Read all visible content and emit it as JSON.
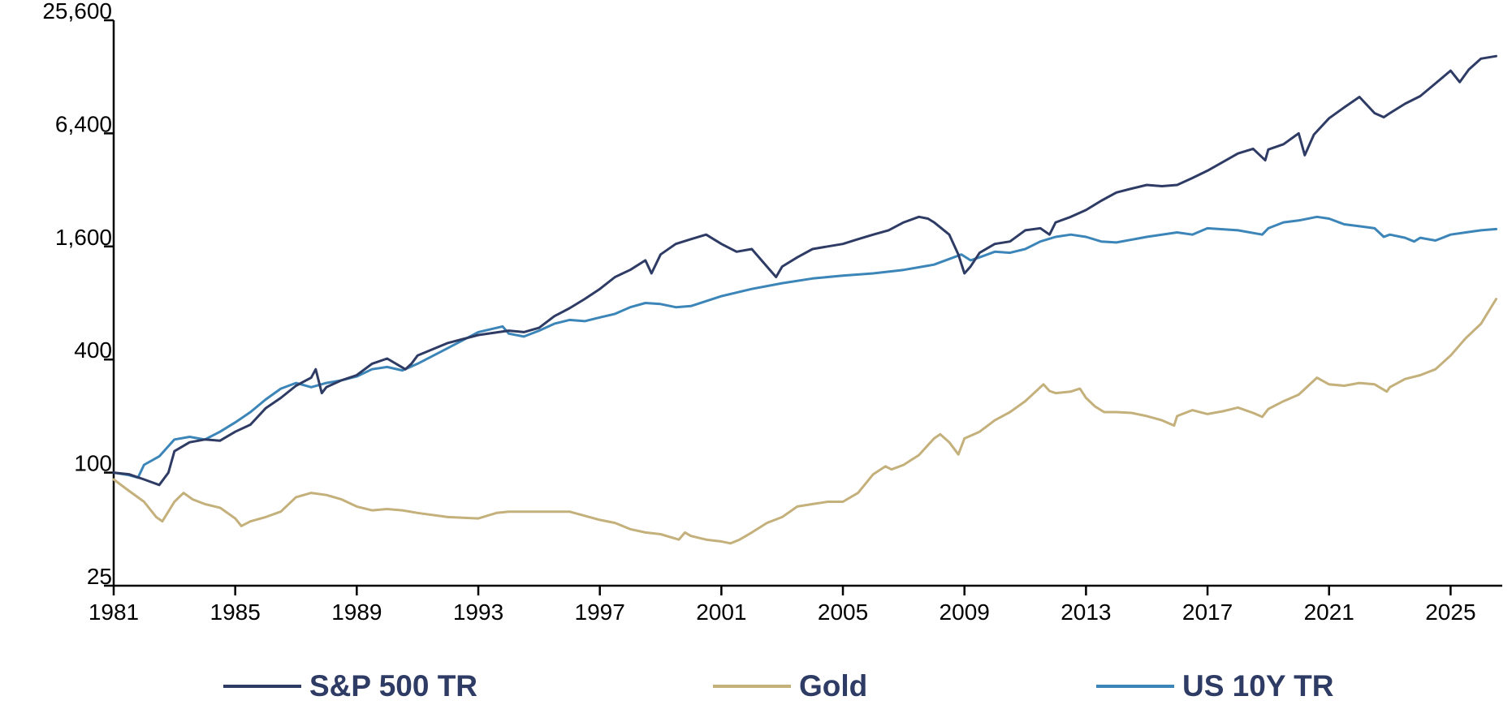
{
  "chart_data": {
    "type": "line",
    "title": "",
    "xlabel": "",
    "ylabel": "",
    "y_scale": "log",
    "ylim": [
      25,
      25600
    ],
    "xlim": [
      1981,
      2026.7
    ],
    "y_ticks": [
      25,
      100,
      400,
      1600,
      6400,
      25600
    ],
    "y_tick_labels": [
      "25",
      "100",
      "400",
      "1,600",
      "6,400",
      "25,600"
    ],
    "x_ticks": [
      1981,
      1985,
      1989,
      1993,
      1997,
      2001,
      2005,
      2009,
      2013,
      2017,
      2021,
      2025
    ],
    "x_tick_labels": [
      "1981",
      "1985",
      "1989",
      "1993",
      "1997",
      "2001",
      "2005",
      "2009",
      "2013",
      "2017",
      "2021",
      "2025"
    ],
    "grid": false,
    "legend_position": "bottom",
    "series": [
      {
        "name": "S&P 500 TR",
        "color": "#2E3B64",
        "x": [
          1981.0,
          1981.5,
          1982.0,
          1982.5,
          1982.8,
          1983.0,
          1983.5,
          1984.0,
          1984.5,
          1985.0,
          1985.5,
          1986.0,
          1986.5,
          1987.0,
          1987.5,
          1987.65,
          1987.85,
          1988.0,
          1988.5,
          1989.0,
          1989.5,
          1990.0,
          1990.6,
          1990.8,
          1991.0,
          1992.0,
          1993.0,
          1994.0,
          1994.5,
          1995.0,
          1995.5,
          1996.0,
          1996.5,
          1997.0,
          1997.5,
          1998.0,
          1998.5,
          1998.7,
          1999.0,
          1999.5,
          2000.0,
          2000.5,
          2001.0,
          2001.5,
          2002.0,
          2002.5,
          2002.8,
          2003.0,
          2003.5,
          2004.0,
          2004.5,
          2005.0,
          2005.5,
          2006.0,
          2006.5,
          2007.0,
          2007.5,
          2007.8,
          2008.0,
          2008.5,
          2008.8,
          2009.0,
          2009.2,
          2009.5,
          2010.0,
          2010.5,
          2011.0,
          2011.5,
          2011.8,
          2012.0,
          2012.5,
          2013.0,
          2013.5,
          2014.0,
          2014.5,
          2015.0,
          2015.5,
          2016.0,
          2016.5,
          2017.0,
          2017.5,
          2018.0,
          2018.5,
          2018.9,
          2019.0,
          2019.5,
          2020.0,
          2020.2,
          2020.5,
          2021.0,
          2021.5,
          2022.0,
          2022.5,
          2022.8,
          2023.0,
          2023.5,
          2024.0,
          2024.5,
          2025.0,
          2025.3,
          2025.6,
          2026.0,
          2026.5
        ],
        "y": [
          100,
          98,
          92,
          86,
          100,
          130,
          145,
          150,
          148,
          165,
          180,
          220,
          250,
          290,
          320,
          355,
          265,
          285,
          310,
          330,
          380,
          405,
          355,
          380,
          420,
          490,
          540,
          570,
          560,
          590,
          680,
          750,
          840,
          950,
          1100,
          1200,
          1350,
          1150,
          1450,
          1650,
          1750,
          1850,
          1650,
          1500,
          1550,
          1250,
          1100,
          1250,
          1400,
          1550,
          1600,
          1650,
          1750,
          1850,
          1950,
          2150,
          2300,
          2250,
          2150,
          1850,
          1450,
          1150,
          1250,
          1480,
          1650,
          1700,
          1950,
          2000,
          1850,
          2150,
          2300,
          2500,
          2800,
          3100,
          3250,
          3400,
          3350,
          3400,
          3700,
          4050,
          4500,
          5000,
          5300,
          4600,
          5250,
          5600,
          6400,
          4900,
          6300,
          7700,
          8800,
          10000,
          8200,
          7800,
          8200,
          9200,
          10100,
          11800,
          13800,
          12000,
          14000,
          16000,
          16500
        ]
      },
      {
        "name": "Gold",
        "color": "#C4B07B",
        "x": [
          1981.0,
          1981.5,
          1982.0,
          1982.4,
          1982.6,
          1983.0,
          1983.3,
          1983.6,
          1984.0,
          1984.5,
          1985.0,
          1985.2,
          1985.5,
          1986.0,
          1986.5,
          1987.0,
          1987.5,
          1988.0,
          1988.5,
          1989.0,
          1989.5,
          1990.0,
          1990.5,
          1991.0,
          1992.0,
          1993.0,
          1993.6,
          1994.0,
          1995.0,
          1996.0,
          1997.0,
          1997.5,
          1998.0,
          1998.5,
          1999.0,
          1999.6,
          1999.8,
          2000.0,
          2000.5,
          2001.0,
          2001.3,
          2001.6,
          2002.0,
          2002.5,
          2003.0,
          2003.5,
          2004.0,
          2004.5,
          2005.0,
          2005.5,
          2006.0,
          2006.4,
          2006.6,
          2007.0,
          2007.5,
          2008.0,
          2008.2,
          2008.5,
          2008.8,
          2009.0,
          2009.5,
          2010.0,
          2010.5,
          2011.0,
          2011.6,
          2011.8,
          2012.0,
          2012.5,
          2012.8,
          2013.0,
          2013.3,
          2013.6,
          2014.0,
          2014.5,
          2015.0,
          2015.5,
          2015.9,
          2016.0,
          2016.5,
          2017.0,
          2017.5,
          2018.0,
          2018.5,
          2018.8,
          2019.0,
          2019.5,
          2020.0,
          2020.6,
          2021.0,
          2021.5,
          2022.0,
          2022.5,
          2022.9,
          2023.0,
          2023.5,
          2024.0,
          2024.5,
          2025.0,
          2025.5,
          2026.0,
          2026.5
        ],
        "y": [
          92,
          80,
          70,
          58,
          55,
          70,
          78,
          72,
          68,
          65,
          57,
          52,
          55,
          58,
          62,
          74,
          78,
          76,
          72,
          66,
          63,
          64,
          63,
          61,
          58,
          57,
          61,
          62,
          62,
          62,
          56,
          54,
          50,
          48,
          47,
          44,
          48,
          46,
          44,
          43,
          42,
          44,
          48,
          54,
          58,
          66,
          68,
          70,
          70,
          78,
          98,
          108,
          104,
          110,
          124,
          152,
          160,
          145,
          125,
          152,
          165,
          190,
          210,
          240,
          295,
          272,
          265,
          270,
          280,
          250,
          225,
          210,
          210,
          208,
          200,
          190,
          178,
          200,
          215,
          205,
          212,
          222,
          208,
          198,
          218,
          240,
          260,
          320,
          295,
          290,
          300,
          295,
          270,
          285,
          315,
          330,
          355,
          420,
          520,
          620,
          840
        ]
      },
      {
        "name": "US 10Y TR",
        "color": "#3C85B8",
        "x": [
          1981.0,
          1981.5,
          1981.8,
          1982.0,
          1982.5,
          1983.0,
          1983.5,
          1984.0,
          1984.5,
          1985.0,
          1985.5,
          1986.0,
          1986.5,
          1987.0,
          1987.5,
          1988.0,
          1988.5,
          1989.0,
          1989.5,
          1990.0,
          1990.5,
          1991.0,
          1992.0,
          1993.0,
          1993.8,
          1994.0,
          1994.5,
          1995.0,
          1995.5,
          1996.0,
          1996.5,
          1997.0,
          1997.5,
          1998.0,
          1998.5,
          1999.0,
          1999.5,
          2000.0,
          2001.0,
          2002.0,
          2003.0,
          2004.0,
          2005.0,
          2006.0,
          2007.0,
          2008.0,
          2008.9,
          2009.2,
          2009.5,
          2010.0,
          2010.5,
          2011.0,
          2011.5,
          2012.0,
          2012.5,
          2013.0,
          2013.5,
          2014.0,
          2015.0,
          2016.0,
          2016.5,
          2017.0,
          2018.0,
          2018.8,
          2019.0,
          2019.5,
          2020.0,
          2020.6,
          2021.0,
          2021.5,
          2022.0,
          2022.5,
          2022.8,
          2023.0,
          2023.5,
          2023.8,
          2024.0,
          2024.5,
          2025.0,
          2025.5,
          2026.0,
          2026.5
        ],
        "y": [
          100,
          97,
          94,
          110,
          122,
          150,
          155,
          150,
          165,
          185,
          210,
          245,
          280,
          300,
          285,
          300,
          310,
          325,
          355,
          365,
          350,
          380,
          460,
          560,
          600,
          550,
          530,
          570,
          620,
          650,
          640,
          670,
          700,
          760,
          800,
          790,
          760,
          770,
          870,
          950,
          1020,
          1080,
          1120,
          1150,
          1200,
          1280,
          1450,
          1350,
          1400,
          1500,
          1480,
          1550,
          1700,
          1800,
          1850,
          1800,
          1700,
          1680,
          1800,
          1900,
          1850,
          2000,
          1950,
          1850,
          2000,
          2150,
          2200,
          2300,
          2250,
          2100,
          2050,
          2000,
          1800,
          1850,
          1780,
          1700,
          1780,
          1720,
          1850,
          1900,
          1950,
          1980
        ]
      }
    ]
  }
}
